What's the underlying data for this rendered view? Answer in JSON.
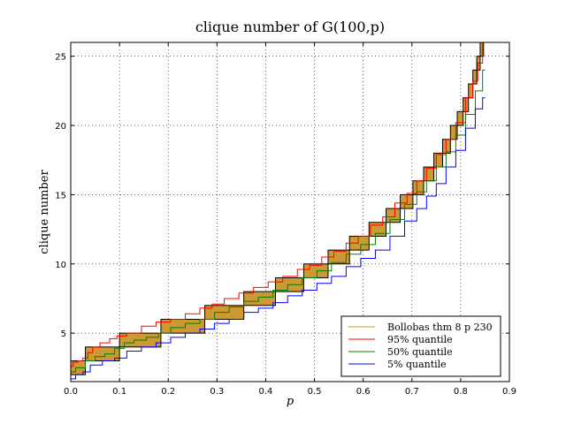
{
  "chart_data": {
    "type": "line",
    "title": "clique number of G(100,p)",
    "xlabel": "p",
    "ylabel": "clique number",
    "xlim": [
      0.0,
      0.9
    ],
    "ylim": [
      1.5,
      26.0
    ],
    "xticks": [
      "0.0",
      "0.1",
      "0.2",
      "0.3",
      "0.4",
      "0.5",
      "0.6",
      "0.7",
      "0.8",
      "0.9"
    ],
    "yticks": [
      "5",
      "10",
      "15",
      "20",
      "25"
    ],
    "grid": true,
    "legend_position": "lower-right",
    "colors": {
      "bollobas_fill": "#cc9933",
      "q95": "#ff0000",
      "q50": "#008000",
      "q5": "#0000ff",
      "frame": "#000000"
    },
    "series": [
      {
        "name": "Bollobas thm 8 p 230",
        "kind": "intervals",
        "intervals": [
          {
            "x0": 0.0,
            "x1": 0.03,
            "lo": 2,
            "hi": 3
          },
          {
            "x0": 0.03,
            "x1": 0.1,
            "lo": 3,
            "hi": 4
          },
          {
            "x0": 0.1,
            "x1": 0.185,
            "lo": 4,
            "hi": 5
          },
          {
            "x0": 0.185,
            "x1": 0.275,
            "lo": 5,
            "hi": 6
          },
          {
            "x0": 0.275,
            "x1": 0.355,
            "lo": 6,
            "hi": 7
          },
          {
            "x0": 0.355,
            "x1": 0.42,
            "lo": 7,
            "hi": 8
          },
          {
            "x0": 0.42,
            "x1": 0.478,
            "lo": 8,
            "hi": 9
          },
          {
            "x0": 0.478,
            "x1": 0.528,
            "lo": 9,
            "hi": 10
          },
          {
            "x0": 0.528,
            "x1": 0.572,
            "lo": 10,
            "hi": 11
          },
          {
            "x0": 0.572,
            "x1": 0.612,
            "lo": 11,
            "hi": 12
          },
          {
            "x0": 0.612,
            "x1": 0.647,
            "lo": 12,
            "hi": 13
          },
          {
            "x0": 0.647,
            "x1": 0.676,
            "lo": 13,
            "hi": 14
          },
          {
            "x0": 0.676,
            "x1": 0.702,
            "lo": 14,
            "hi": 15
          },
          {
            "x0": 0.702,
            "x1": 0.724,
            "lo": 15,
            "hi": 16
          },
          {
            "x0": 0.724,
            "x1": 0.745,
            "lo": 16,
            "hi": 17
          },
          {
            "x0": 0.745,
            "x1": 0.763,
            "lo": 17,
            "hi": 18
          },
          {
            "x0": 0.763,
            "x1": 0.779,
            "lo": 18,
            "hi": 19
          },
          {
            "x0": 0.779,
            "x1": 0.793,
            "lo": 19,
            "hi": 20
          },
          {
            "x0": 0.793,
            "x1": 0.805,
            "lo": 20,
            "hi": 21
          },
          {
            "x0": 0.805,
            "x1": 0.816,
            "lo": 21,
            "hi": 22
          },
          {
            "x0": 0.816,
            "x1": 0.825,
            "lo": 22,
            "hi": 23
          },
          {
            "x0": 0.825,
            "x1": 0.833,
            "lo": 23,
            "hi": 24
          },
          {
            "x0": 0.833,
            "x1": 0.84,
            "lo": 24,
            "hi": 25
          },
          {
            "x0": 0.84,
            "x1": 0.847,
            "lo": 25,
            "hi": 26
          }
        ]
      },
      {
        "name": "95% quantile",
        "color": "#ff0000",
        "points": [
          [
            0.0,
            2.6
          ],
          [
            0.01,
            2.9
          ],
          [
            0.02,
            3.0
          ],
          [
            0.03,
            3.2
          ],
          [
            0.04,
            3.6
          ],
          [
            0.05,
            4.0
          ],
          [
            0.07,
            4.3
          ],
          [
            0.09,
            4.6
          ],
          [
            0.1,
            4.8
          ],
          [
            0.13,
            5.0
          ],
          [
            0.16,
            5.5
          ],
          [
            0.19,
            5.8
          ],
          [
            0.22,
            6.0
          ],
          [
            0.25,
            6.4
          ],
          [
            0.28,
            6.8
          ],
          [
            0.3,
            7.1
          ],
          [
            0.33,
            7.5
          ],
          [
            0.36,
            7.9
          ],
          [
            0.39,
            8.3
          ],
          [
            0.42,
            8.7
          ],
          [
            0.45,
            9.1
          ],
          [
            0.48,
            9.6
          ],
          [
            0.5,
            9.9
          ],
          [
            0.53,
            10.5
          ],
          [
            0.55,
            10.9
          ],
          [
            0.58,
            11.5
          ],
          [
            0.6,
            12.0
          ],
          [
            0.63,
            12.8
          ],
          [
            0.65,
            13.4
          ],
          [
            0.68,
            14.4
          ],
          [
            0.7,
            15.1
          ],
          [
            0.72,
            16.0
          ],
          [
            0.74,
            16.9
          ],
          [
            0.76,
            17.9
          ],
          [
            0.78,
            19.0
          ],
          [
            0.8,
            20.2
          ],
          [
            0.82,
            22.0
          ],
          [
            0.83,
            23.2
          ],
          [
            0.84,
            24.5
          ],
          [
            0.85,
            26.0
          ]
        ]
      },
      {
        "name": "50% quantile",
        "color": "#008000",
        "points": [
          [
            0.0,
            2.2
          ],
          [
            0.02,
            2.5
          ],
          [
            0.04,
            3.0
          ],
          [
            0.06,
            3.3
          ],
          [
            0.08,
            3.5
          ],
          [
            0.1,
            3.9
          ],
          [
            0.12,
            4.3
          ],
          [
            0.14,
            4.5
          ],
          [
            0.17,
            4.7
          ],
          [
            0.19,
            5.0
          ],
          [
            0.22,
            5.4
          ],
          [
            0.25,
            5.7
          ],
          [
            0.28,
            6.0
          ],
          [
            0.31,
            6.5
          ],
          [
            0.34,
            6.9
          ],
          [
            0.37,
            7.3
          ],
          [
            0.4,
            7.6
          ],
          [
            0.43,
            8.1
          ],
          [
            0.46,
            8.5
          ],
          [
            0.49,
            9.0
          ],
          [
            0.52,
            9.5
          ],
          [
            0.55,
            10.1
          ],
          [
            0.58,
            10.7
          ],
          [
            0.61,
            11.4
          ],
          [
            0.64,
            12.2
          ],
          [
            0.67,
            13.2
          ],
          [
            0.7,
            14.3
          ],
          [
            0.72,
            15.2
          ],
          [
            0.74,
            16.0
          ],
          [
            0.76,
            17.0
          ],
          [
            0.78,
            18.1
          ],
          [
            0.8,
            19.3
          ],
          [
            0.82,
            20.8
          ],
          [
            0.84,
            22.5
          ],
          [
            0.85,
            24.0
          ]
        ]
      },
      {
        "name": "5% quantile",
        "color": "#0000ff",
        "points": [
          [
            0.0,
            1.7
          ],
          [
            0.02,
            2.0
          ],
          [
            0.03,
            2.2
          ],
          [
            0.05,
            2.7
          ],
          [
            0.08,
            3.0
          ],
          [
            0.1,
            3.2
          ],
          [
            0.13,
            3.7
          ],
          [
            0.16,
            4.0
          ],
          [
            0.19,
            4.3
          ],
          [
            0.22,
            4.7
          ],
          [
            0.25,
            5.0
          ],
          [
            0.28,
            5.3
          ],
          [
            0.31,
            5.7
          ],
          [
            0.34,
            6.0
          ],
          [
            0.37,
            6.5
          ],
          [
            0.4,
            6.8
          ],
          [
            0.43,
            7.2
          ],
          [
            0.46,
            7.7
          ],
          [
            0.49,
            8.1
          ],
          [
            0.52,
            8.6
          ],
          [
            0.55,
            9.1
          ],
          [
            0.58,
            9.8
          ],
          [
            0.61,
            10.4
          ],
          [
            0.64,
            11.0
          ],
          [
            0.67,
            12.0
          ],
          [
            0.7,
            13.1
          ],
          [
            0.72,
            14.0
          ],
          [
            0.74,
            14.9
          ],
          [
            0.76,
            15.8
          ],
          [
            0.78,
            17.0
          ],
          [
            0.8,
            18.2
          ],
          [
            0.82,
            19.8
          ],
          [
            0.84,
            21.2
          ],
          [
            0.85,
            22.0
          ]
        ]
      }
    ]
  }
}
